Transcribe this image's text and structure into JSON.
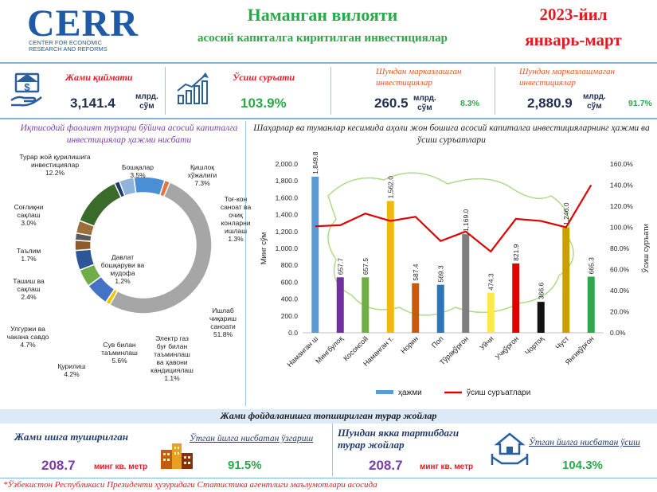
{
  "logo": {
    "name": "CERR",
    "sub1": "CENTER FOR ECONOMIC",
    "sub2": "RESEARCH AND REFORMS"
  },
  "header": {
    "title": "Наманган вилояти",
    "subtitle": "асосий капиталга киритилган инвестициялар",
    "period_year": "2023-йил",
    "period_months": "январь-март"
  },
  "kpis": {
    "total": {
      "label": "Жами қиймати",
      "value": "3,141.4",
      "unit1": "млрд.",
      "unit2": "сўм"
    },
    "growth": {
      "label": "Ўсиш суръати",
      "value": "103.9%"
    },
    "centralized": {
      "label": "Шундан марказлашган инвестициялар",
      "value": "260.5",
      "unit1": "млрд.",
      "unit2": "сўм",
      "pct": "8.3%"
    },
    "decentralized": {
      "label": "Шундан марказлашмаган инвестициялар",
      "value": "2,880.9",
      "unit1": "млрд.",
      "unit2": "сўм",
      "pct": "91.7%"
    }
  },
  "colors": {
    "accent_green": "#2ba84a",
    "accent_red": "#e11b22",
    "brand_blue": "#1f5aa6",
    "purple": "#7a3ea8",
    "icon": "#2a5f9e"
  },
  "icons": {
    "money_hand": "money-hand-icon",
    "growth_chart": "growth-chart-icon",
    "buildings": "buildings-icon",
    "house_hand": "house-hand-icon"
  },
  "pie_title": "Иқтисодий фаолият турлари бўйича асосий капиталга инвестициялар ҳажми нисбати",
  "chart_data": [
    {
      "type": "pie",
      "style": "donut",
      "center_label": "Давлат бошқаруви ва мудофа 1.2%",
      "categories": [
        "Бошқалар",
        "Қишлоқ хўжалиги",
        "Тоғ-кон саноат ва очиқ конларни ишлаш",
        "Ишлаб чиқариш саноати",
        "Электр газ буғ билан таъминлаш ва ҳавони кандициялаш",
        "Сув билан таъминлаш",
        "Қурилиш",
        "Улгуржи ва чакана савдо",
        "Ташиш ва сақлаш",
        "Таълим",
        "Соғлиқни сақлаш",
        "Турар жой қурилишига инвестициялар",
        "Давлат бошқаруви ва мудофа"
      ],
      "values": [
        3.5,
        7.3,
        1.3,
        51.8,
        1.1,
        5.6,
        4.2,
        4.7,
        2.4,
        1.7,
        3.0,
        12.2,
        1.2
      ],
      "labels": [
        [
          "Бошқалар",
          "3.5%"
        ],
        [
          "Қишлоқ",
          "хўжалиги",
          "7.3%"
        ],
        [
          "Тоғ-кон",
          "саноат  ва",
          "очиқ",
          "конларни",
          "ишлаш",
          "1.3%"
        ],
        [
          "Ишлаб",
          "чиқариш",
          "саноати",
          "51.8%"
        ],
        [
          "Электр газ",
          "буғ билан",
          "таъминлаш",
          "ва ҳавони",
          "кандициялаш",
          "1.1%"
        ],
        [
          "Сув билан",
          "таъминлаш",
          "5.6%"
        ],
        [
          "Қурилиш",
          "4.2%"
        ],
        [
          "Улгуржи ва",
          "чакана савдо",
          "4.7%"
        ],
        [
          "Ташиш ва",
          "сақлаш",
          "2.4%"
        ],
        [
          "Таълим",
          "1.7%"
        ],
        [
          "Соғлиқни",
          "сақлаш",
          "3.0%"
        ],
        [
          "Турар жой қурилишига",
          "инвестициялар",
          "12.2%"
        ],
        [
          "Давлат",
          "бошқаруви ва",
          "мудофа",
          "1.2%"
        ]
      ],
      "colors": [
        "#8fb4dc",
        "#4a8fd6",
        "#e8743b",
        "#a6a6a6",
        "#f2c300",
        "#4472c4",
        "#70ad47",
        "#2e5597",
        "#8c5a2b",
        "#5a5a5a",
        "#9c6f3a",
        "#3b6b2a",
        "#1f3b6e"
      ]
    },
    {
      "type": "bar",
      "title": "Шаҳарлар ва туманлар кесимида аҳоли жон бошига асосий капиталга инвестицияларнинг ҳажми ва ўсиш суръатлари",
      "categories": [
        "Наманган ш",
        "Мингбулоқ",
        "Косонсой",
        "Наманган т.",
        "Норин",
        "Поп",
        "Тўрақўрғон",
        "Уйчи",
        "Учқўрғон",
        "Чортоқ",
        "Чуст",
        "Янгиқўрғон"
      ],
      "bar_labels": [
        "1,849.8",
        "657.7",
        "657.5",
        "1,562.0",
        "587.4",
        "569.3",
        "1,169.0",
        "474.3",
        "821.9",
        "366.6",
        "1,246.0",
        "665.3"
      ],
      "series": [
        {
          "name": "ҳажми",
          "values": [
            1849.8,
            657.7,
            657.5,
            1562.0,
            587.4,
            569.3,
            1169.0,
            474.3,
            821.9,
            366.6,
            1246.0,
            665.3
          ],
          "axis": "left"
        },
        {
          "name": "ўсиш суръатлари",
          "values": [
            101,
            102,
            113,
            106,
            110,
            87,
            96,
            77,
            108,
            106,
            100,
            140
          ],
          "axis": "right",
          "type": "line"
        }
      ],
      "bar_colors": [
        "#5b9bd5",
        "#7030a0",
        "#70ad47",
        "#f2b90c",
        "#c55a11",
        "#2e75b6",
        "#7f7f7f",
        "#ffe84a",
        "#e00000",
        "#111111",
        "#c9a000",
        "#2ea84a"
      ],
      "line_color": "#e00000",
      "ylabel": "Минг сўм",
      "y2label": "Ўсиш суръати",
      "ylim": [
        0,
        2000
      ],
      "y2lim": [
        0,
        160
      ],
      "yticks": [
        "0.0",
        "200.0",
        "400.0",
        "600.0",
        "800.0",
        "1,000.0",
        "1,200.0",
        "1,400.0",
        "1,600.0",
        "1,800.0",
        "2,000.0"
      ],
      "y2ticks": [
        "0.0%",
        "20.0%",
        "40.0%",
        "60.0%",
        "80.0%",
        "100.0%",
        "120.0%",
        "140.0%",
        "160.0%"
      ],
      "legend": [
        "ҳажми",
        "ўсиш суръатлари"
      ],
      "legend_position": "bottom"
    }
  ],
  "housing": {
    "head": "Жами фойдаланишга топширилган турар жойлар",
    "total_label": "Жами ишга туширилган",
    "total_value": "208.7",
    "total_unit": "минг кв. метр",
    "total_growth_label": "Ўтган йилга нисбатан ўзгариш",
    "total_growth": "91.5%",
    "individual_label": "Шундан якка тартибдаги турар жойлар",
    "individual_value": "208.7",
    "individual_unit": "минг кв. метр",
    "individual_growth_label": "Ўтган йилга нисбатан ўсиш",
    "individual_growth": "104.3%"
  },
  "footnote": "*Ўзбекистон Республикаси Президенти ҳузуридаги Статистика агентлиги маълумотлари асосида"
}
